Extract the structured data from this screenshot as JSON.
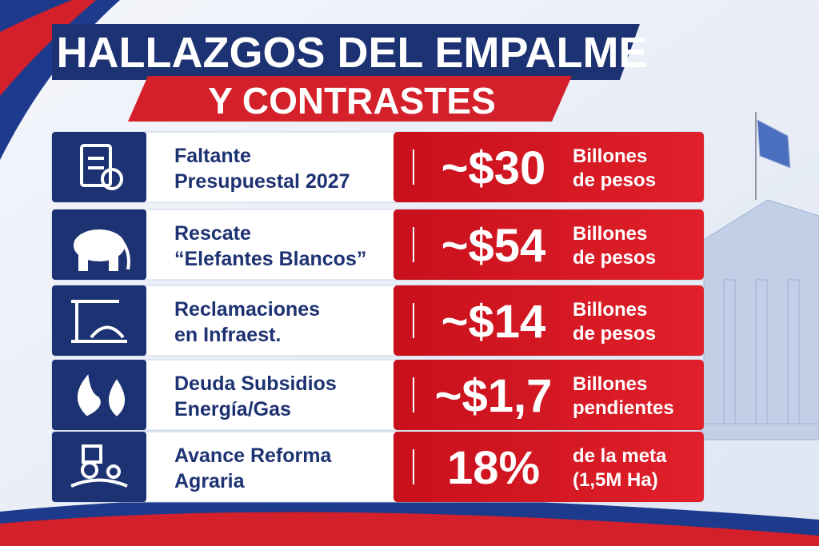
{
  "title": {
    "line1": "HALLAZGOS DEL EMPALME",
    "line2": "Y CONTRASTES"
  },
  "rows": [
    {
      "label": [
        "Faltante",
        "Presupuestal 2027"
      ],
      "value": "~$30",
      "unit": [
        "Billones",
        "de pesos"
      ]
    },
    {
      "label": [
        "Rescate",
        "“Elefantes Blancos”"
      ],
      "value": "~$54",
      "unit": [
        "Billones",
        "de pesos"
      ]
    },
    {
      "label": [
        "Reclamaciones",
        "en Infraest."
      ],
      "value": "~$14",
      "unit": [
        "Billones",
        "de pesos"
      ]
    },
    {
      "label": [
        "Deuda Subsidios",
        "Energía/Gas"
      ],
      "value": "~$1,7",
      "unit": [
        "Billones",
        "pendientes"
      ]
    },
    {
      "label": [
        "Avance Reforma",
        "Agraria"
      ],
      "value": "18%",
      "unit": [
        "de la meta",
        "(1,5M Ha)"
      ]
    }
  ]
}
